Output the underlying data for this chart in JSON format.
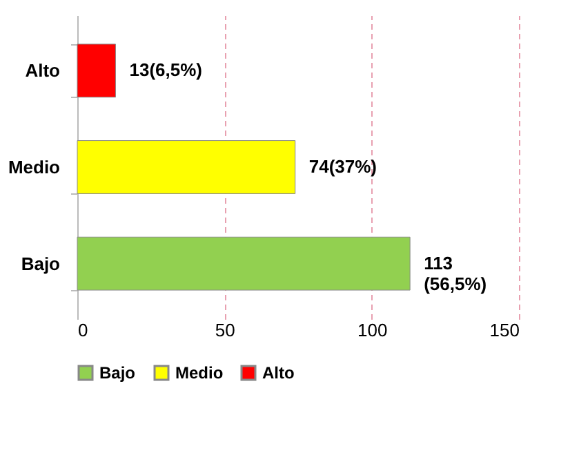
{
  "chart_data": {
    "type": "bar",
    "orientation": "horizontal",
    "categories": [
      "Alto",
      "Medio",
      "Bajo"
    ],
    "series": [
      {
        "name": "Bajo",
        "color": "#92d050",
        "values": [
          null,
          null,
          113
        ],
        "value_labels": [
          null,
          null,
          "113\n(56,5%)"
        ]
      },
      {
        "name": "Medio",
        "color": "#ffff00",
        "values": [
          null,
          74,
          null
        ],
        "value_labels": [
          null,
          "74(37%)",
          null
        ]
      },
      {
        "name": "Alto",
        "color": "#ff0000",
        "values": [
          13,
          null,
          null
        ],
        "value_labels": [
          "13(6,5%)",
          null,
          null
        ]
      }
    ],
    "xlim": [
      0,
      150
    ],
    "xticks": [
      0,
      50,
      100,
      150
    ],
    "grid": "x",
    "legend": "bottom"
  }
}
